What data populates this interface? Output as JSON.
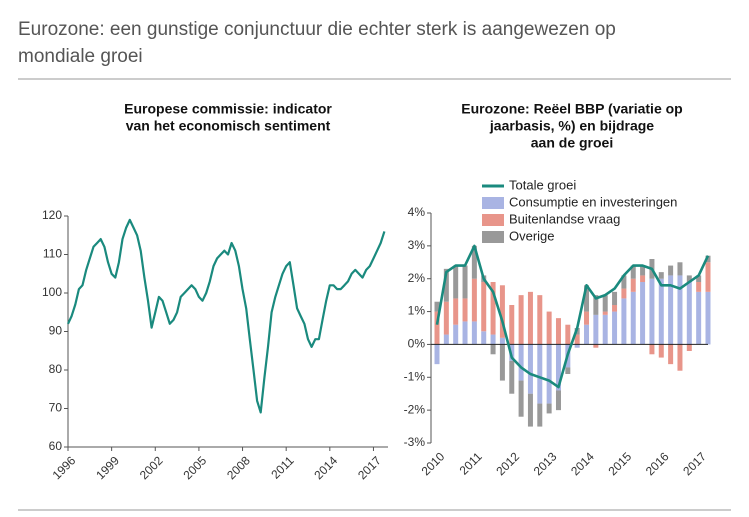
{
  "header": {
    "title": [
      "Eurozone: een gunstige conjunctuur die echter sterk is aangewezen op",
      "mondiale groei"
    ]
  },
  "chart_data": [
    {
      "type": "line",
      "title": [
        "Europese commissie: indicator",
        "van het economisch sentiment"
      ],
      "color": "#1a8a7e",
      "x": [
        1996,
        1996.25,
        1996.5,
        1996.75,
        1997,
        1997.25,
        1997.5,
        1997.75,
        1998,
        1998.25,
        1998.5,
        1998.75,
        1999,
        1999.25,
        1999.5,
        1999.75,
        2000,
        2000.25,
        2000.5,
        2000.75,
        2001,
        2001.25,
        2001.5,
        2001.75,
        2002,
        2002.25,
        2002.5,
        2002.75,
        2003,
        2003.25,
        2003.5,
        2003.75,
        2004,
        2004.25,
        2004.5,
        2004.75,
        2005,
        2005.25,
        2005.5,
        2005.75,
        2006,
        2006.25,
        2006.5,
        2006.75,
        2007,
        2007.25,
        2007.5,
        2007.75,
        2008,
        2008.25,
        2008.5,
        2008.75,
        2009,
        2009.25,
        2009.5,
        2009.75,
        2010,
        2010.25,
        2010.5,
        2010.75,
        2011,
        2011.25,
        2011.5,
        2011.75,
        2012,
        2012.25,
        2012.5,
        2012.75,
        2013,
        2013.25,
        2013.5,
        2013.75,
        2014,
        2014.25,
        2014.5,
        2014.75,
        2015,
        2015.25,
        2015.5,
        2015.75,
        2016,
        2016.25,
        2016.5,
        2016.75,
        2017,
        2017.25,
        2017.5,
        2017.75
      ],
      "values": [
        92,
        94,
        97,
        101,
        102,
        106,
        109,
        112,
        113,
        114,
        112,
        108,
        105,
        104,
        108,
        114,
        117,
        119,
        117,
        115,
        111,
        104,
        98,
        91,
        95,
        99,
        98,
        95,
        92,
        93,
        95,
        99,
        100,
        101,
        102,
        101,
        99,
        98,
        100,
        103,
        107,
        109,
        110,
        111,
        110,
        113,
        111,
        107,
        101,
        96,
        88,
        80,
        72,
        69,
        78,
        86,
        95,
        99,
        102,
        105,
        107,
        108,
        102,
        96,
        94,
        92,
        88,
        86,
        88,
        88,
        93,
        98,
        102,
        102,
        101,
        101,
        102,
        103,
        105,
        106,
        105,
        104,
        106,
        107,
        109,
        111,
        113,
        116
      ],
      "xlim": [
        1996,
        2018
      ],
      "xticks": [
        1996,
        1999,
        2002,
        2005,
        2008,
        2011,
        2014,
        2017
      ],
      "ylim": [
        60,
        120
      ],
      "yticks": [
        60,
        70,
        80,
        90,
        100,
        110,
        120
      ]
    },
    {
      "type": "combo",
      "title": [
        "Eurozone: Reëel BBP (variatie op",
        "jaarbasis, %) en bijdrage",
        "aan de groei"
      ],
      "categories": [
        "2010",
        null,
        null,
        null,
        "2011",
        null,
        null,
        null,
        "2012",
        null,
        null,
        null,
        "2013",
        null,
        null,
        null,
        "2014",
        null,
        null,
        null,
        "2015",
        null,
        null,
        null,
        "2016",
        null,
        null,
        null,
        "2017",
        null
      ],
      "legend": "top-left",
      "series": [
        {
          "name": "Totale groei",
          "type": "line",
          "color": "#1a8a7e",
          "values": [
            0.6,
            2.2,
            2.4,
            2.4,
            3.0,
            2.0,
            1.6,
            0.7,
            -0.4,
            -0.7,
            -0.9,
            -1.0,
            -1.1,
            -1.3,
            -0.3,
            0.5,
            1.8,
            1.4,
            1.5,
            1.7,
            2.1,
            2.4,
            2.4,
            2.3,
            1.8,
            1.8,
            1.7,
            1.9,
            2.1,
            2.7
          ]
        },
        {
          "name": "Consumptie en investeringen",
          "type": "bar",
          "color": "#a9b4e3",
          "values": [
            -0.6,
            0.3,
            0.6,
            0.7,
            0.7,
            0.4,
            0.3,
            0.2,
            -0.5,
            -1.1,
            -1.5,
            -1.8,
            -1.8,
            -1.4,
            -0.7,
            -0.1,
            0.6,
            0.9,
            0.9,
            1.0,
            1.4,
            1.6,
            1.9,
            2.0,
            2.0,
            2.1,
            2.1,
            1.9,
            1.6,
            1.6
          ]
        },
        {
          "name": "Buitenlandse vraag",
          "type": "bar",
          "color": "#e8958a",
          "values": [
            1.0,
            1.0,
            0.8,
            0.7,
            1.3,
            1.5,
            1.6,
            1.6,
            1.2,
            1.5,
            1.6,
            1.5,
            1.0,
            0.8,
            0.6,
            0.3,
            0.4,
            -0.1,
            0.1,
            0.2,
            0.3,
            0.4,
            0.2,
            -0.3,
            -0.4,
            -0.6,
            -0.8,
            -0.2,
            0.3,
            0.9
          ]
        },
        {
          "name": "Overige",
          "type": "bar",
          "color": "#999999",
          "values": [
            0.3,
            1.0,
            1.0,
            1.0,
            1.0,
            0.2,
            -0.3,
            -1.1,
            -1.0,
            -1.1,
            -1.0,
            -0.7,
            -0.3,
            -0.6,
            -0.2,
            0.2,
            0.8,
            0.6,
            0.5,
            0.4,
            0.4,
            0.4,
            0.3,
            0.6,
            0.2,
            0.3,
            0.4,
            0.2,
            0.2,
            0.2
          ]
        }
      ],
      "ylim": [
        -3,
        4
      ],
      "yticks": [
        {
          "value": -3,
          "label": "-3%"
        },
        {
          "value": -2,
          "label": "-2%"
        },
        {
          "value": -1,
          "label": "-1%"
        },
        {
          "value": 0,
          "label": "0%"
        },
        {
          "value": 1,
          "label": "1%"
        },
        {
          "value": 2,
          "label": "2%"
        },
        {
          "value": 3,
          "label": "3%"
        },
        {
          "value": 4,
          "label": "4%"
        }
      ]
    }
  ]
}
